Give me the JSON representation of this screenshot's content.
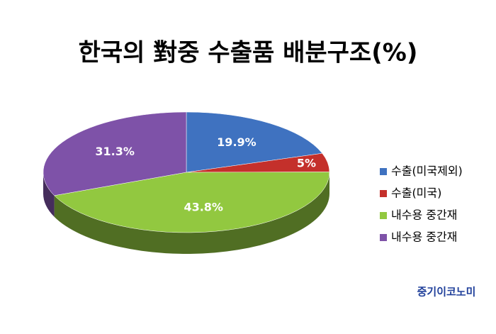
{
  "chart_data": {
    "type": "pie",
    "title": "한국의 對중 수출품 배분구조(%)",
    "categories": [
      "수출(미국제외)",
      "수출(미국)",
      "내수용 중간재",
      "내수용 중간재"
    ],
    "values": [
      19.9,
      5,
      43.8,
      31.3
    ],
    "value_labels": [
      "19.9%",
      "5%",
      "43.8%",
      "31.3%"
    ],
    "colors": [
      "#3f72c0",
      "#c4302b",
      "#92c840",
      "#7e52a8"
    ],
    "legend": "right",
    "credit": "중기이코노미"
  }
}
